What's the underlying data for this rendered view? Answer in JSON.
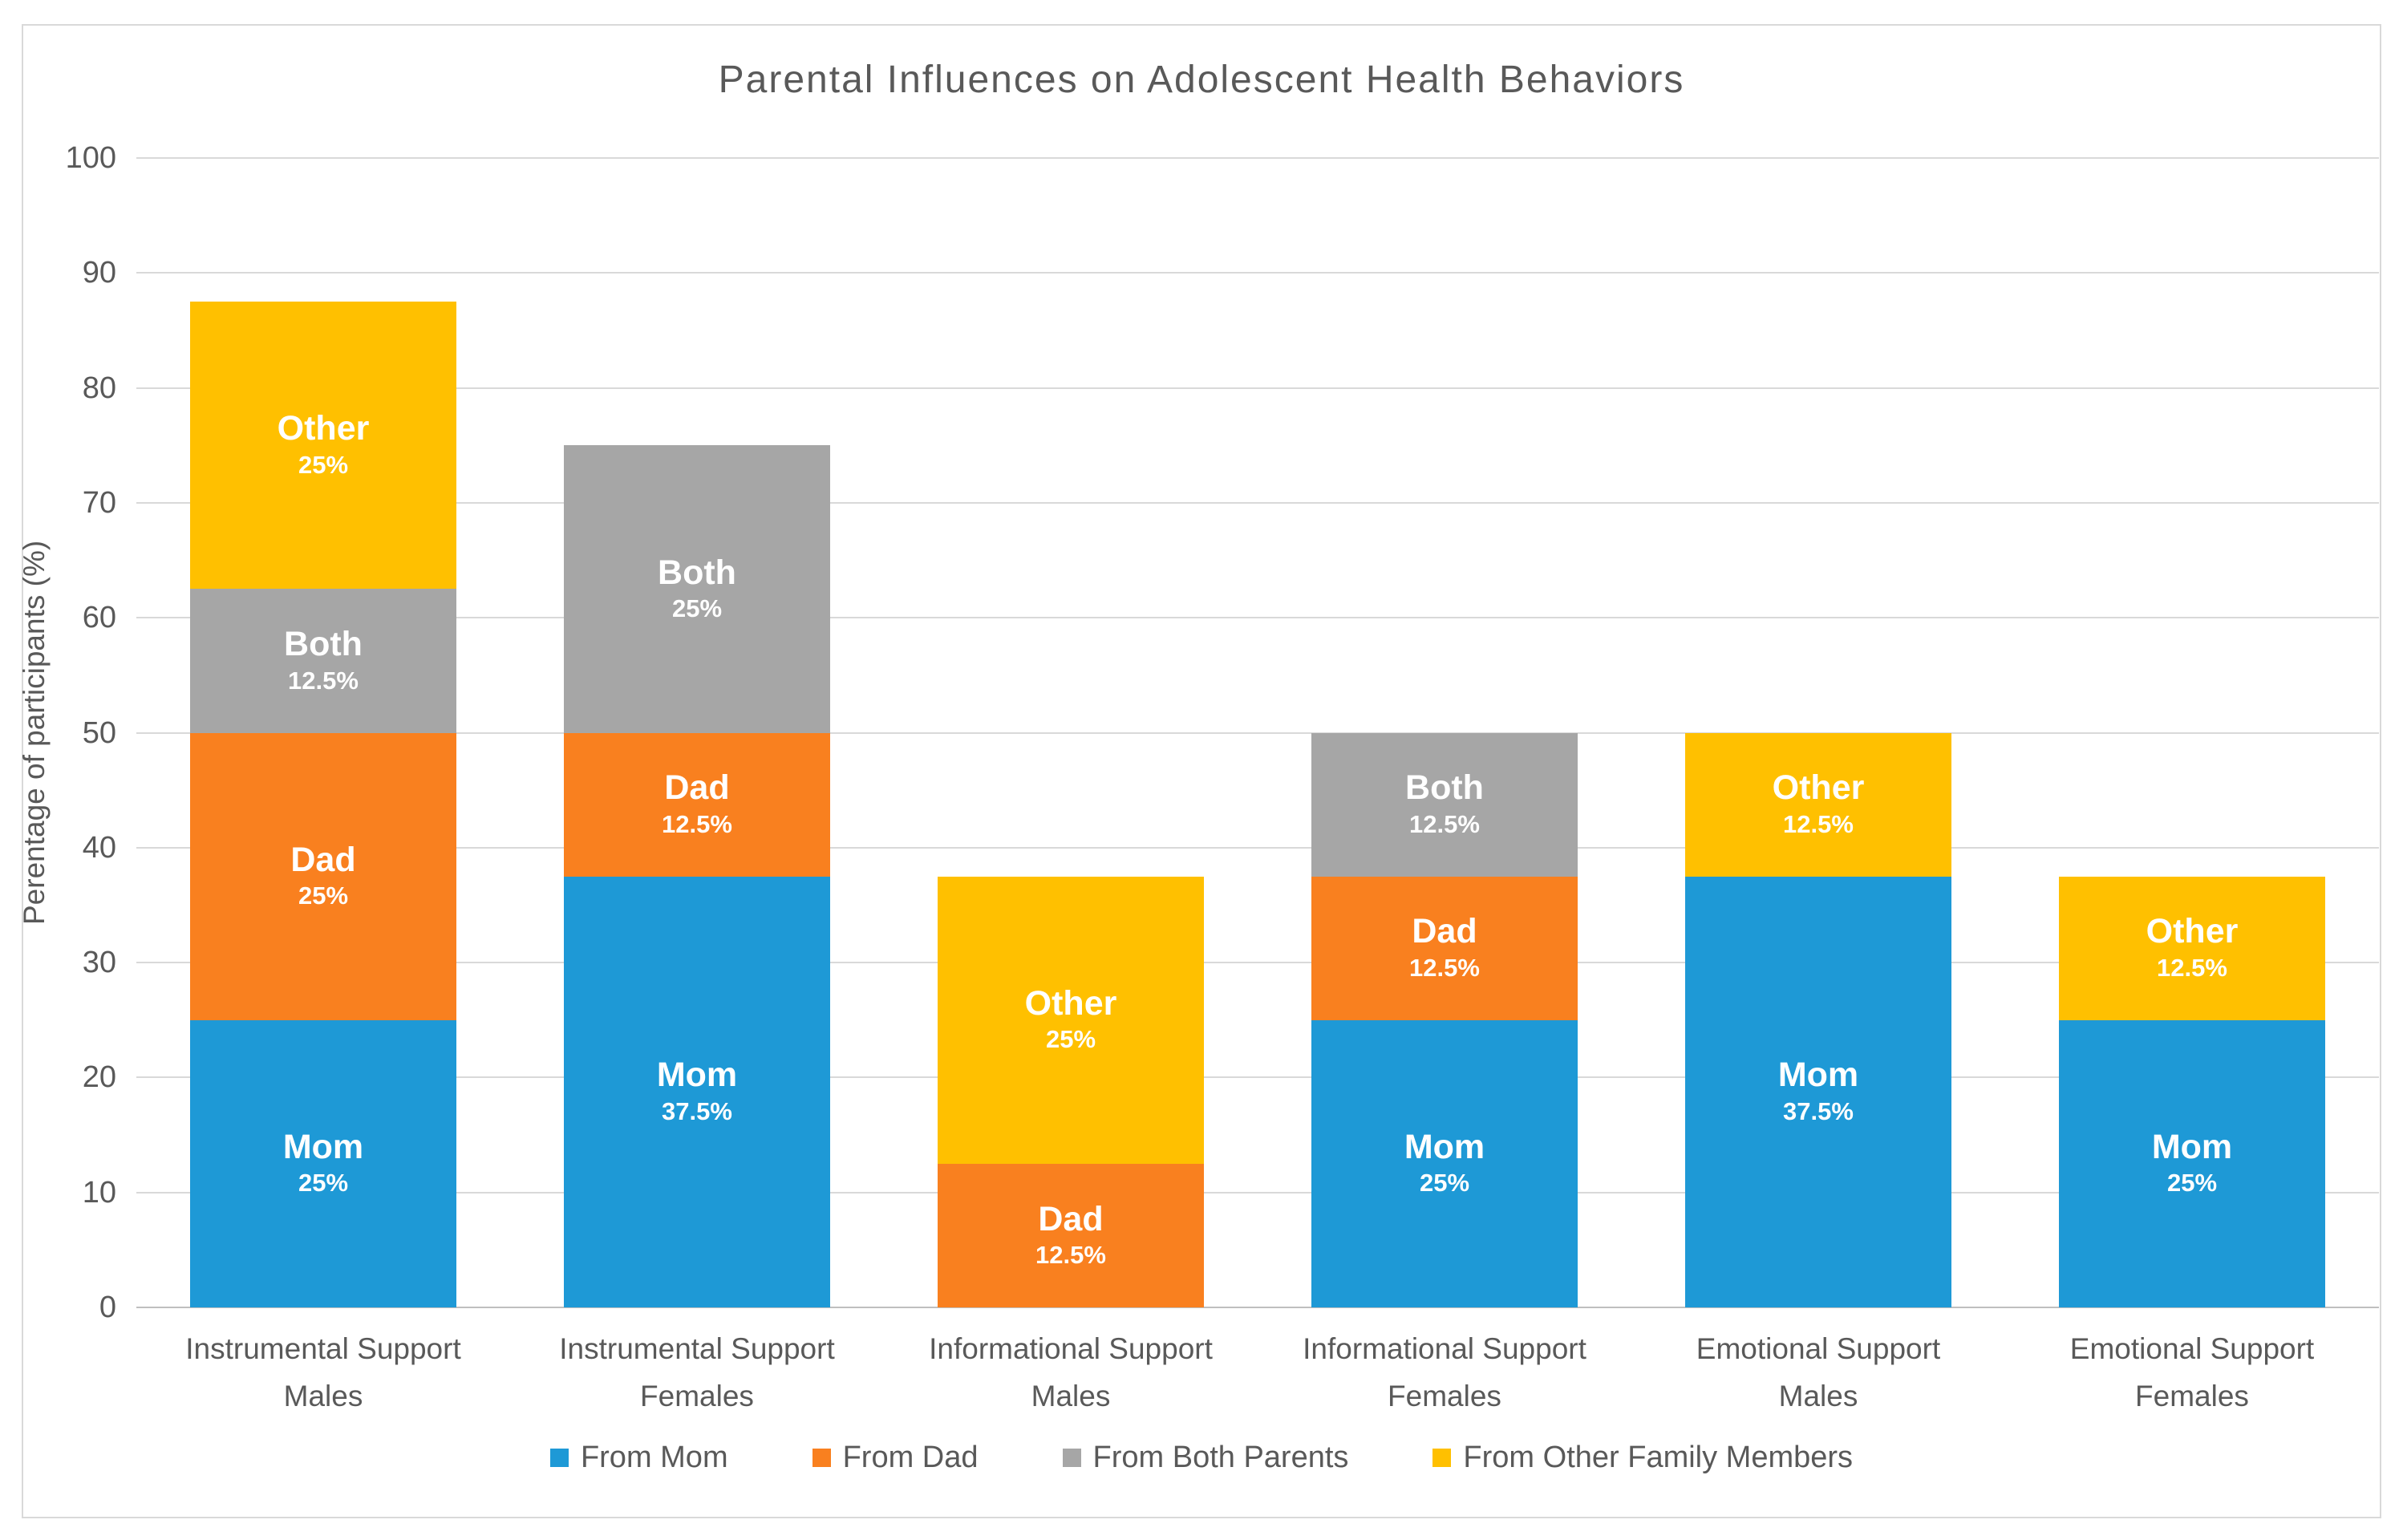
{
  "chart": {
    "title": "Parental Influences on Adolescent Health Behaviors",
    "y_axis_title": "Perentage of participants (%)"
  },
  "chart_data": {
    "type": "bar",
    "stacked": true,
    "title": "Parental Influences on Adolescent Health Behaviors",
    "ylabel": "Perentage of participants (%)",
    "xlabel": "",
    "ylim": [
      0,
      100
    ],
    "yticks": [
      0,
      10,
      20,
      30,
      40,
      50,
      60,
      70,
      80,
      90,
      100
    ],
    "grid": true,
    "legend_position": "bottom",
    "categories": [
      {
        "line1": "Instrumental Support",
        "line2": "Males"
      },
      {
        "line1": "Instrumental Support",
        "line2": "Females"
      },
      {
        "line1": "Informational Support",
        "line2": "Males"
      },
      {
        "line1": "Informational Support",
        "line2": "Females"
      },
      {
        "line1": "Emotional Support",
        "line2": "Males"
      },
      {
        "line1": "Emotional Support",
        "line2": "Females"
      }
    ],
    "series": [
      {
        "name": "From Mom",
        "segment_label": "Mom",
        "color": "#1E99D6",
        "values": [
          25,
          37.5,
          0,
          25,
          37.5,
          25
        ],
        "value_labels": [
          "25%",
          "37.5%",
          "",
          "25%",
          "37.5%",
          "25%"
        ]
      },
      {
        "name": "From Dad",
        "segment_label": "Dad",
        "color": "#F9801F",
        "values": [
          25,
          12.5,
          12.5,
          12.5,
          0,
          0
        ],
        "value_labels": [
          "25%",
          "12.5%",
          "12.5%",
          "12.5%",
          "",
          ""
        ]
      },
      {
        "name": "From Both Parents",
        "segment_label": "Both",
        "color": "#A6A6A6",
        "values": [
          12.5,
          25,
          0,
          12.5,
          0,
          0
        ],
        "value_labels": [
          "12.5%",
          "25%",
          "",
          "12.5%",
          "",
          ""
        ]
      },
      {
        "name": "From Other Family Members",
        "segment_label": "Other",
        "color": "#FFC000",
        "values": [
          25,
          0,
          25,
          0,
          12.5,
          12.5
        ],
        "value_labels": [
          "25%",
          "",
          "25%",
          "",
          "12.5%",
          "12.5%"
        ]
      }
    ],
    "colors": {
      "grid": "#D9D9D9",
      "axis_line": "#BFBFBF",
      "text": "#595959",
      "frame_border": "#D9D9D9",
      "segment_label_text": "#FFFFFF"
    }
  }
}
